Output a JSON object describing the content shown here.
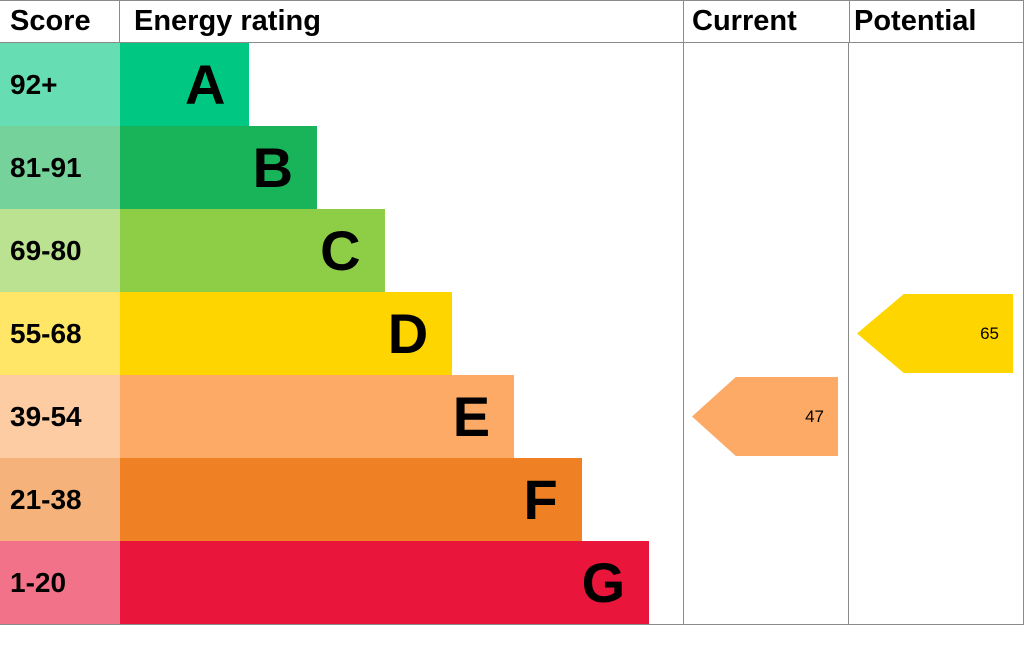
{
  "header": {
    "score": "Score",
    "rating": "Energy rating",
    "current": "Current",
    "potential": "Potential"
  },
  "chart_data": {
    "type": "bar",
    "title": "Energy rating (EPC band chart)",
    "categories": [
      "A",
      "B",
      "C",
      "D",
      "E",
      "F",
      "G"
    ],
    "bands": [
      {
        "score": "92+",
        "letter": "A",
        "color": "#00c781",
        "tint": "#66ddb3",
        "width_pct": 23
      },
      {
        "score": "81-91",
        "letter": "B",
        "color": "#19b459",
        "tint": "#75d29b",
        "width_pct": 35
      },
      {
        "score": "69-80",
        "letter": "C",
        "color": "#8dce46",
        "tint": "#bae290",
        "width_pct": 47
      },
      {
        "score": "55-68",
        "letter": "D",
        "color": "#ffd500",
        "tint": "#ffe666",
        "width_pct": 59
      },
      {
        "score": "39-54",
        "letter": "E",
        "color": "#fcaa65",
        "tint": "#fdcca3",
        "width_pct": 70
      },
      {
        "score": "21-38",
        "letter": "F",
        "color": "#ef8023",
        "tint": "#f5b37b",
        "width_pct": 82
      },
      {
        "score": "1-20",
        "letter": "G",
        "color": "#e9153b",
        "tint": "#f27389",
        "width_pct": 94
      }
    ],
    "current": {
      "value": 47,
      "band": "E",
      "band_index": 4,
      "color": "#fcaa65"
    },
    "potential": {
      "value": 65,
      "band": "D",
      "band_index": 3,
      "color": "#ffd500"
    }
  }
}
